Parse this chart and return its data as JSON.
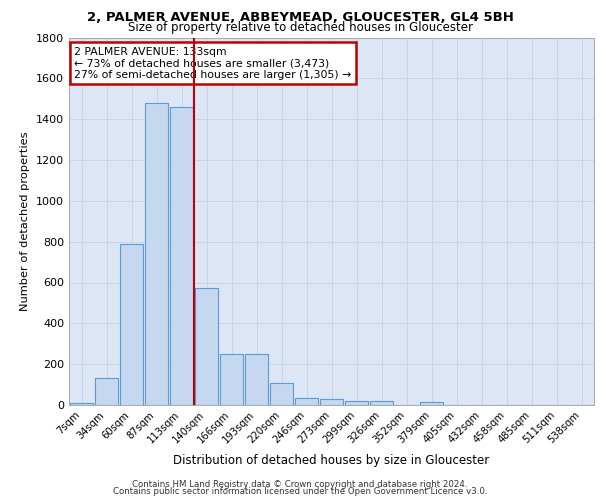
{
  "title_line1": "2, PALMER AVENUE, ABBEYMEAD, GLOUCESTER, GL4 5BH",
  "title_line2": "Size of property relative to detached houses in Gloucester",
  "xlabel": "Distribution of detached houses by size in Gloucester",
  "ylabel": "Number of detached properties",
  "bar_color": "#c5d8f0",
  "bar_edge_color": "#5b9bd5",
  "categories": [
    "7sqm",
    "34sqm",
    "60sqm",
    "87sqm",
    "113sqm",
    "140sqm",
    "166sqm",
    "193sqm",
    "220sqm",
    "246sqm",
    "273sqm",
    "299sqm",
    "326sqm",
    "352sqm",
    "379sqm",
    "405sqm",
    "432sqm",
    "458sqm",
    "485sqm",
    "511sqm",
    "538sqm"
  ],
  "values": [
    10,
    130,
    790,
    1480,
    1460,
    575,
    248,
    248,
    110,
    35,
    30,
    20,
    20,
    0,
    15,
    0,
    0,
    0,
    0,
    0,
    0
  ],
  "vline_x": 4.5,
  "vline_color": "#c00000",
  "annotation_box_text": "2 PALMER AVENUE: 133sqm\n← 73% of detached houses are smaller (3,473)\n27% of semi-detached houses are larger (1,305) →",
  "annotation_box_color": "white",
  "annotation_box_edge_color": "#c00000",
  "grid_color": "#c8d4e8",
  "background_color": "#dce6f5",
  "ylim": [
    0,
    1800
  ],
  "yticks": [
    0,
    200,
    400,
    600,
    800,
    1000,
    1200,
    1400,
    1600,
    1800
  ],
  "footer_line1": "Contains HM Land Registry data © Crown copyright and database right 2024.",
  "footer_line2": "Contains public sector information licensed under the Open Government Licence v3.0."
}
